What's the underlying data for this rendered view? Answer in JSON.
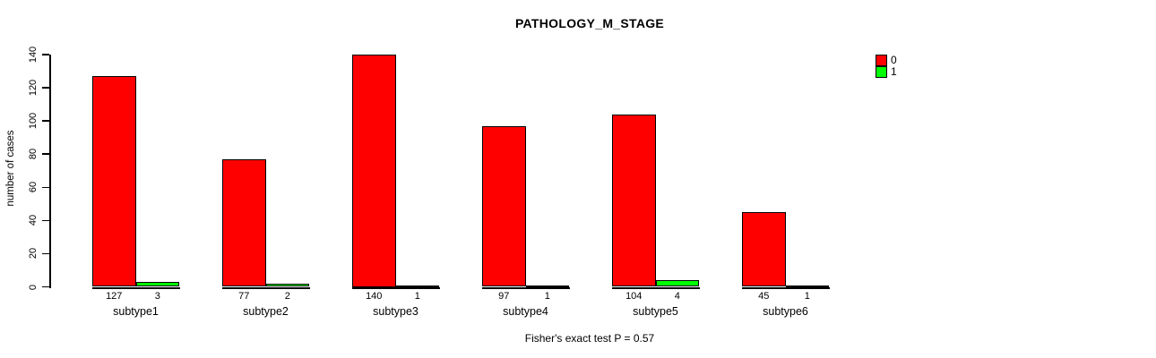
{
  "chart_data": {
    "type": "bar",
    "title": "PATHOLOGY_M_STAGE",
    "ylabel": "number of cases",
    "xlabel": "",
    "ylim": [
      0,
      140
    ],
    "yticks": [
      0,
      20,
      40,
      60,
      80,
      100,
      120,
      140
    ],
    "grid": false,
    "legend_position": "top-right-outside",
    "categories": [
      "subtype1",
      "subtype2",
      "subtype3",
      "subtype4",
      "subtype5",
      "subtype6"
    ],
    "series": [
      {
        "name": "0",
        "color": "#ff0000",
        "values": [
          127,
          77,
          140,
          97,
          104,
          45
        ]
      },
      {
        "name": "1",
        "color": "#00ff00",
        "values": [
          3,
          2,
          1,
          1,
          4,
          1
        ]
      }
    ],
    "bar_value_labels_shown": true,
    "footer": "Fisher's exact test P = 0.57",
    "axis_color": "#000000",
    "background_color": "#ffffff"
  }
}
